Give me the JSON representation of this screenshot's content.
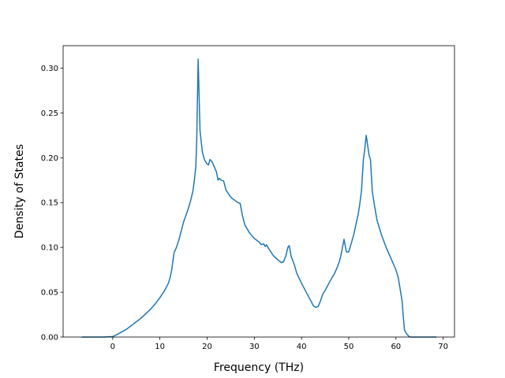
{
  "chart_data": {
    "type": "line",
    "title": "",
    "xlabel": "Frequency (THz)",
    "ylabel": "Density of States",
    "xlim": [
      -10.5,
      72.4
    ],
    "ylim": [
      0.0,
      0.325
    ],
    "xticks": [
      0,
      10,
      20,
      30,
      40,
      50,
      60,
      70
    ],
    "xtick_labels": [
      "0",
      "10",
      "20",
      "30",
      "40",
      "50",
      "60",
      "70"
    ],
    "yticks": [
      0.0,
      0.05,
      0.1,
      0.15,
      0.2,
      0.25,
      0.3
    ],
    "ytick_labels": [
      "0.00",
      "0.05",
      "0.10",
      "0.15",
      "0.20",
      "0.25",
      "0.30"
    ],
    "grid": false,
    "legend": "none",
    "series": [
      {
        "color": "#1f77b4",
        "x": [
          -6.5,
          -4,
          -2,
          0,
          1,
          2,
          3,
          4,
          5,
          6,
          7,
          8,
          9,
          10,
          11,
          11.8,
          12.2,
          12.5,
          13,
          13.5,
          14,
          15,
          16,
          16.5,
          17,
          17.3,
          17.6,
          17.8,
          18.1,
          18.5,
          19,
          19.5,
          20,
          20.3,
          20.6,
          21,
          21.5,
          22,
          22.3,
          22.6,
          23,
          23.5,
          24,
          25,
          26,
          26.5,
          27,
          27.5,
          28,
          29,
          30,
          31,
          31.5,
          32,
          32.3,
          32.6,
          33,
          34,
          35,
          35.7,
          36.2,
          36.7,
          37.1,
          37.4,
          37.8,
          38.4,
          39,
          40,
          41,
          42,
          42.5,
          43,
          43.5,
          44,
          44.5,
          45,
          45.5,
          46,
          47,
          47.5,
          48,
          48.3,
          48.6,
          49,
          49.5,
          50,
          50.5,
          51,
          51.5,
          52,
          52.3,
          52.7,
          53.1,
          53.4,
          53.7,
          54,
          54.3,
          54.6,
          55,
          55.5,
          56,
          57,
          58,
          59,
          60,
          60.5,
          61,
          61.3,
          61.5,
          61.8,
          62.2,
          62.7,
          63,
          64,
          66,
          68.5
        ],
        "y": [
          0.0,
          0.0,
          0.0,
          0.0005,
          0.003,
          0.006,
          0.009,
          0.013,
          0.017,
          0.021,
          0.026,
          0.031,
          0.037,
          0.044,
          0.052,
          0.06,
          0.067,
          0.075,
          0.094,
          0.1,
          0.108,
          0.128,
          0.143,
          0.152,
          0.163,
          0.175,
          0.19,
          0.22,
          0.31,
          0.23,
          0.206,
          0.197,
          0.193,
          0.192,
          0.198,
          0.196,
          0.19,
          0.184,
          0.175,
          0.177,
          0.175,
          0.174,
          0.164,
          0.156,
          0.152,
          0.15,
          0.149,
          0.135,
          0.125,
          0.116,
          0.11,
          0.106,
          0.103,
          0.104,
          0.101,
          0.103,
          0.099,
          0.091,
          0.086,
          0.083,
          0.084,
          0.091,
          0.1,
          0.102,
          0.09,
          0.082,
          0.071,
          0.06,
          0.05,
          0.04,
          0.035,
          0.033,
          0.034,
          0.04,
          0.048,
          0.052,
          0.057,
          0.062,
          0.071,
          0.077,
          0.084,
          0.09,
          0.098,
          0.109,
          0.095,
          0.095,
          0.104,
          0.113,
          0.125,
          0.137,
          0.147,
          0.163,
          0.198,
          0.21,
          0.225,
          0.214,
          0.203,
          0.198,
          0.162,
          0.145,
          0.13,
          0.113,
          0.099,
          0.087,
          0.075,
          0.066,
          0.05,
          0.04,
          0.026,
          0.008,
          0.004,
          0.001,
          0.0,
          0.0,
          0.0,
          0.0
        ]
      }
    ]
  }
}
